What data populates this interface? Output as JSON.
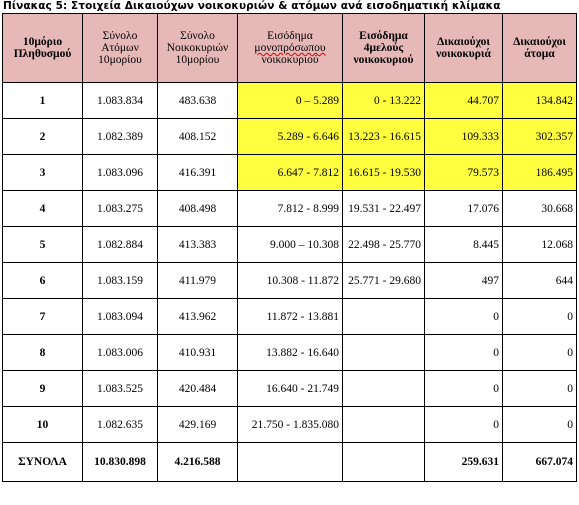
{
  "caption": "Πίνακας 5: Στοιχεία Δικαιούχων νοικοκυριών & ατόμων ανά εισοδηματική κλίμακα",
  "headers": {
    "decile": "10μόριο Πληθυσμού",
    "total_persons": "Σύνολο Ατόμων 10μορίου",
    "total_households": "Σύνολο Νοικοκυριών 10μορίου",
    "income_single": "Εισόδημα μονοπρόσωπου νοικοκυριού",
    "income_single_pre": "Εισόδημα ",
    "income_single_mark": "μονοπρόσωπου",
    "income_single_post": " νοικοκυριού",
    "income_four": "Εισόδημα 4μελούς νοικοκυριού",
    "beneficiary_households": "Δικαιούχοι νοικοκυριά",
    "beneficiary_persons": "Δικαιούχοι άτομα"
  },
  "rows": [
    {
      "decile": "1",
      "persons": "1.083.834",
      "households": "483.638",
      "income_single": "0 – 5.289",
      "income_four": "0 - 13.222",
      "ben_households": "44.707",
      "ben_persons": "134.842",
      "highlight": true
    },
    {
      "decile": "2",
      "persons": "1.082.389",
      "households": "408.152",
      "income_single": "5.289 - 6.646",
      "income_four": "13.223 - 16.615",
      "ben_households": "109.333",
      "ben_persons": "302.357",
      "highlight": true
    },
    {
      "decile": "3",
      "persons": "1.083.096",
      "households": "416.391",
      "income_single": "6.647 - 7.812",
      "income_four": "16.615 - 19.530",
      "ben_households": "79.573",
      "ben_persons": "186.495",
      "highlight": true
    },
    {
      "decile": "4",
      "persons": "1.083.275",
      "households": "408.498",
      "income_single": "7.812 - 8.999",
      "income_four": "19.531 - 22.497",
      "ben_households": "17.076",
      "ben_persons": "30.668",
      "highlight": false
    },
    {
      "decile": "5",
      "persons": "1.082.884",
      "households": "413.383",
      "income_single": "9.000 – 10.308",
      "income_four": "22.498 - 25.770",
      "ben_households": "8.445",
      "ben_persons": "12.068",
      "highlight": false
    },
    {
      "decile": "6",
      "persons": "1.083.159",
      "households": "411.979",
      "income_single": "10.308 - 11.872",
      "income_four": "25.771 - 29.680",
      "ben_households": "497",
      "ben_persons": "644",
      "highlight": false
    },
    {
      "decile": "7",
      "persons": "1.083.094",
      "households": "413.962",
      "income_single": "11.872 - 13.881",
      "income_four": "",
      "ben_households": "0",
      "ben_persons": "0",
      "highlight": false
    },
    {
      "decile": "8",
      "persons": "1.083.006",
      "households": "410.931",
      "income_single": "13.882 - 16.640",
      "income_four": "",
      "ben_households": "0",
      "ben_persons": "0",
      "highlight": false
    },
    {
      "decile": "9",
      "persons": "1.083.525",
      "households": "420.484",
      "income_single": "16.640 - 21.749",
      "income_four": "",
      "ben_households": "0",
      "ben_persons": "0",
      "highlight": false
    },
    {
      "decile": "10",
      "persons": "1.082.635",
      "households": "429.169",
      "income_single": "21.750 - 1.835.080",
      "income_four": "",
      "ben_households": "0",
      "ben_persons": "0",
      "highlight": false
    }
  ],
  "totals": {
    "label": "ΣΥΝΟΛΑ",
    "persons": "10.830.898",
    "households": "4.216.588",
    "income_single": "",
    "income_four": "",
    "ben_households": "259.631",
    "ben_persons": "667.074"
  },
  "colors": {
    "header_bg": "#e6b8b7",
    "highlight_bg": "#ffff40"
  }
}
